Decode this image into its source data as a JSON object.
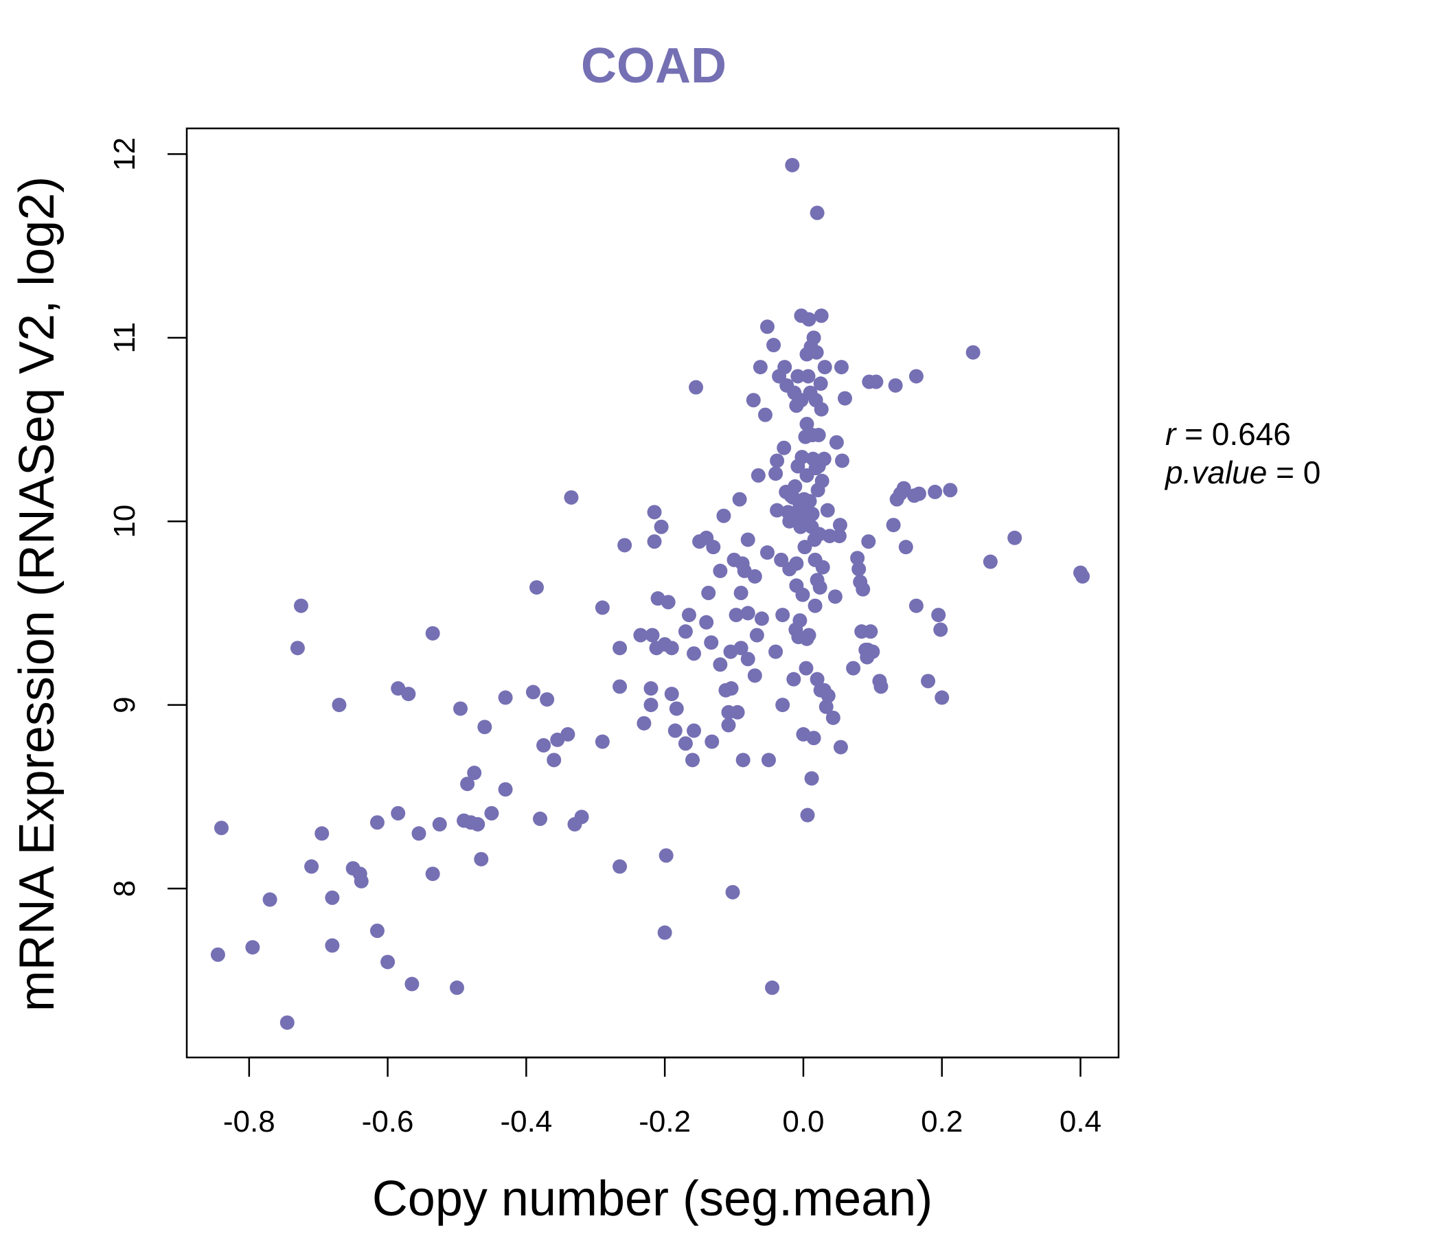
{
  "chart_data": {
    "type": "scatter",
    "title": "COAD",
    "xlabel": "Copy number (seg.mean)",
    "ylabel": "mRNA Expression (RNASeq V2, log2)",
    "xlim": [
      -0.89,
      0.455
    ],
    "ylim": [
      7.08,
      12.14
    ],
    "xticks": [
      -0.8,
      -0.6,
      -0.4,
      -0.2,
      0.0,
      0.2,
      0.4
    ],
    "xtick_labels": [
      "-0.8",
      "-0.6",
      "-0.4",
      "-0.2",
      "0.0",
      "0.2",
      "0.4"
    ],
    "yticks": [
      8,
      9,
      10,
      11,
      12
    ],
    "ytick_labels": [
      "8",
      "9",
      "10",
      "11",
      "12"
    ],
    "grid": false,
    "point_color": "#7570b3",
    "annotation": {
      "r_label": "r",
      "r_value": "0.646",
      "p_label": "p.value",
      "p_value": "0"
    },
    "points": [
      [
        -0.84,
        8.33
      ],
      [
        -0.845,
        7.64
      ],
      [
        -0.795,
        7.68
      ],
      [
        -0.77,
        7.94
      ],
      [
        -0.745,
        7.27
      ],
      [
        -0.725,
        9.54
      ],
      [
        -0.73,
        9.31
      ],
      [
        -0.71,
        8.12
      ],
      [
        -0.695,
        8.3
      ],
      [
        -0.68,
        7.95
      ],
      [
        -0.68,
        7.69
      ],
      [
        -0.67,
        9.0
      ],
      [
        -0.65,
        8.11
      ],
      [
        -0.64,
        8.08
      ],
      [
        -0.638,
        8.04
      ],
      [
        -0.615,
        8.36
      ],
      [
        -0.615,
        7.77
      ],
      [
        -0.6,
        7.6
      ],
      [
        -0.585,
        8.41
      ],
      [
        -0.585,
        9.09
      ],
      [
        -0.57,
        9.06
      ],
      [
        -0.565,
        7.48
      ],
      [
        -0.555,
        8.3
      ],
      [
        -0.535,
        9.39
      ],
      [
        -0.535,
        8.08
      ],
      [
        -0.525,
        8.35
      ],
      [
        -0.5,
        7.46
      ],
      [
        -0.495,
        8.98
      ],
      [
        -0.49,
        8.37
      ],
      [
        -0.485,
        8.57
      ],
      [
        -0.48,
        8.36
      ],
      [
        -0.475,
        8.63
      ],
      [
        -0.47,
        8.35
      ],
      [
        -0.465,
        8.16
      ],
      [
        -0.46,
        8.88
      ],
      [
        -0.45,
        8.41
      ],
      [
        -0.43,
        8.54
      ],
      [
        -0.43,
        9.04
      ],
      [
        -0.39,
        9.07
      ],
      [
        -0.385,
        9.64
      ],
      [
        -0.38,
        8.38
      ],
      [
        -0.375,
        8.78
      ],
      [
        -0.37,
        9.03
      ],
      [
        -0.36,
        8.7
      ],
      [
        -0.355,
        8.81
      ],
      [
        -0.34,
        8.84
      ],
      [
        -0.335,
        10.13
      ],
      [
        -0.33,
        8.35
      ],
      [
        -0.32,
        8.39
      ],
      [
        -0.29,
        9.53
      ],
      [
        -0.29,
        8.8
      ],
      [
        -0.265,
        9.31
      ],
      [
        -0.265,
        9.1
      ],
      [
        -0.265,
        8.12
      ],
      [
        -0.258,
        9.87
      ],
      [
        -0.235,
        9.38
      ],
      [
        -0.23,
        8.9
      ],
      [
        -0.22,
        9.09
      ],
      [
        -0.22,
        9.0
      ],
      [
        -0.218,
        9.38
      ],
      [
        -0.215,
        9.89
      ],
      [
        -0.215,
        10.05
      ],
      [
        -0.212,
        9.31
      ],
      [
        -0.21,
        9.58
      ],
      [
        -0.205,
        9.97
      ],
      [
        -0.2,
        7.76
      ],
      [
        -0.2,
        9.33
      ],
      [
        -0.198,
        8.18
      ],
      [
        -0.195,
        9.56
      ],
      [
        -0.19,
        9.06
      ],
      [
        -0.19,
        9.31
      ],
      [
        -0.185,
        8.86
      ],
      [
        -0.183,
        8.98
      ],
      [
        -0.17,
        9.4
      ],
      [
        -0.17,
        8.79
      ],
      [
        -0.165,
        9.49
      ],
      [
        -0.16,
        8.7
      ],
      [
        -0.158,
        8.86
      ],
      [
        -0.158,
        9.28
      ],
      [
        -0.155,
        10.73
      ],
      [
        -0.15,
        9.89
      ],
      [
        -0.14,
        9.91
      ],
      [
        -0.14,
        9.45
      ],
      [
        -0.137,
        9.61
      ],
      [
        -0.133,
        9.34
      ],
      [
        -0.132,
        8.8
      ],
      [
        -0.13,
        9.86
      ],
      [
        -0.12,
        9.22
      ],
      [
        -0.12,
        9.73
      ],
      [
        -0.115,
        10.03
      ],
      [
        -0.112,
        9.08
      ],
      [
        -0.108,
        8.96
      ],
      [
        -0.108,
        8.89
      ],
      [
        -0.105,
        9.29
      ],
      [
        -0.104,
        9.09
      ],
      [
        -0.102,
        7.98
      ],
      [
        -0.1,
        9.79
      ],
      [
        -0.097,
        9.49
      ],
      [
        -0.095,
        8.96
      ],
      [
        -0.092,
        10.12
      ],
      [
        -0.09,
        9.31
      ],
      [
        -0.09,
        9.61
      ],
      [
        -0.088,
        9.77
      ],
      [
        -0.087,
        8.7
      ],
      [
        -0.085,
        9.73
      ],
      [
        -0.08,
        9.5
      ],
      [
        -0.08,
        9.25
      ],
      [
        -0.08,
        9.9
      ],
      [
        -0.072,
        10.66
      ],
      [
        -0.07,
        9.7
      ],
      [
        -0.07,
        9.16
      ],
      [
        -0.067,
        9.38
      ],
      [
        -0.065,
        10.25
      ],
      [
        -0.062,
        10.84
      ],
      [
        -0.06,
        9.47
      ],
      [
        -0.055,
        10.58
      ],
      [
        -0.052,
        11.06
      ],
      [
        -0.052,
        9.83
      ],
      [
        -0.05,
        8.7
      ],
      [
        -0.045,
        7.46
      ],
      [
        -0.043,
        10.96
      ],
      [
        -0.04,
        9.29
      ],
      [
        -0.04,
        10.26
      ],
      [
        -0.038,
        10.33
      ],
      [
        -0.038,
        10.06
      ],
      [
        -0.035,
        10.79
      ],
      [
        -0.032,
        9.79
      ],
      [
        -0.03,
        9.49
      ],
      [
        -0.03,
        9.0
      ],
      [
        -0.028,
        10.4
      ],
      [
        -0.027,
        10.84
      ],
      [
        -0.025,
        10.16
      ],
      [
        -0.024,
        10.74
      ],
      [
        -0.022,
        10.05
      ],
      [
        -0.02,
        9.74
      ],
      [
        -0.02,
        10.0
      ],
      [
        -0.018,
        10.14
      ],
      [
        -0.016,
        11.94
      ],
      [
        -0.015,
        10.13
      ],
      [
        -0.014,
        9.14
      ],
      [
        -0.013,
        10.7
      ],
      [
        -0.012,
        10.19
      ],
      [
        -0.012,
        10.04
      ],
      [
        -0.011,
        9.41
      ],
      [
        -0.01,
        10.63
      ],
      [
        -0.01,
        9.77
      ],
      [
        -0.01,
        9.65
      ],
      [
        -0.008,
        10.79
      ],
      [
        -0.008,
        10.3
      ],
      [
        -0.007,
        9.37
      ],
      [
        -0.005,
        10.08
      ],
      [
        -0.005,
        9.46
      ],
      [
        -0.004,
        9.97
      ],
      [
        -0.003,
        11.12
      ],
      [
        -0.003,
        10.66
      ],
      [
        -0.002,
        10.35
      ],
      [
        -0.001,
        9.6
      ],
      [
        0.0,
        10.02
      ],
      [
        0.0,
        8.84
      ],
      [
        0.001,
        10.12
      ],
      [
        0.002,
        9.86
      ],
      [
        0.003,
        10.46
      ],
      [
        0.004,
        10.07
      ],
      [
        0.004,
        9.2
      ],
      [
        0.005,
        10.91
      ],
      [
        0.005,
        10.53
      ],
      [
        0.005,
        9.36
      ],
      [
        0.005,
        10.25
      ],
      [
        0.006,
        8.4
      ],
      [
        0.007,
        10.79
      ],
      [
        0.007,
        9.99
      ],
      [
        0.008,
        11.1
      ],
      [
        0.008,
        9.38
      ],
      [
        0.009,
        10.11
      ],
      [
        0.01,
        10.7
      ],
      [
        0.011,
        10.95
      ],
      [
        0.012,
        9.97
      ],
      [
        0.012,
        8.6
      ],
      [
        0.013,
        10.47
      ],
      [
        0.013,
        10.04
      ],
      [
        0.014,
        10.34
      ],
      [
        0.015,
        11.0
      ],
      [
        0.015,
        8.82
      ],
      [
        0.016,
        9.9
      ],
      [
        0.017,
        9.54
      ],
      [
        0.017,
        9.79
      ],
      [
        0.018,
        10.66
      ],
      [
        0.018,
        10.29
      ],
      [
        0.019,
        10.92
      ],
      [
        0.02,
        11.68
      ],
      [
        0.02,
        9.14
      ],
      [
        0.02,
        9.68
      ],
      [
        0.021,
        10.17
      ],
      [
        0.022,
        10.47
      ],
      [
        0.022,
        10.3
      ],
      [
        0.023,
        9.93
      ],
      [
        0.024,
        9.64
      ],
      [
        0.025,
        10.75
      ],
      [
        0.025,
        9.08
      ],
      [
        0.026,
        11.12
      ],
      [
        0.026,
        10.61
      ],
      [
        0.027,
        10.22
      ],
      [
        0.028,
        9.75
      ],
      [
        0.03,
        9.08
      ],
      [
        0.03,
        10.34
      ],
      [
        0.031,
        10.84
      ],
      [
        0.033,
        8.99
      ],
      [
        0.035,
        10.06
      ],
      [
        0.036,
        9.05
      ],
      [
        0.038,
        9.92
      ],
      [
        0.043,
        8.93
      ],
      [
        0.046,
        9.59
      ],
      [
        0.048,
        10.43
      ],
      [
        0.052,
        9.92
      ],
      [
        0.053,
        9.98
      ],
      [
        0.054,
        8.77
      ],
      [
        0.055,
        10.84
      ],
      [
        0.056,
        10.33
      ],
      [
        0.06,
        10.67
      ],
      [
        0.072,
        9.2
      ],
      [
        0.078,
        9.8
      ],
      [
        0.08,
        9.74
      ],
      [
        0.082,
        9.67
      ],
      [
        0.084,
        9.4
      ],
      [
        0.086,
        9.63
      ],
      [
        0.09,
        9.3
      ],
      [
        0.092,
        9.26
      ],
      [
        0.093,
        9.3
      ],
      [
        0.094,
        9.89
      ],
      [
        0.095,
        10.76
      ],
      [
        0.097,
        9.4
      ],
      [
        0.1,
        9.29
      ],
      [
        0.105,
        10.76
      ],
      [
        0.11,
        9.13
      ],
      [
        0.112,
        9.1
      ],
      [
        0.13,
        9.98
      ],
      [
        0.133,
        10.74
      ],
      [
        0.135,
        10.12
      ],
      [
        0.14,
        10.15
      ],
      [
        0.145,
        10.18
      ],
      [
        0.148,
        9.86
      ],
      [
        0.16,
        10.14
      ],
      [
        0.163,
        10.79
      ],
      [
        0.163,
        9.54
      ],
      [
        0.167,
        10.15
      ],
      [
        0.18,
        9.13
      ],
      [
        0.19,
        10.16
      ],
      [
        0.195,
        9.49
      ],
      [
        0.198,
        9.41
      ],
      [
        0.2,
        9.04
      ],
      [
        0.212,
        10.17
      ],
      [
        0.245,
        10.92
      ],
      [
        0.27,
        9.78
      ],
      [
        0.305,
        9.91
      ],
      [
        0.4,
        9.72
      ],
      [
        0.403,
        9.7
      ]
    ]
  }
}
